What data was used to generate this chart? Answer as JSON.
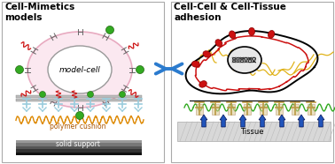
{
  "title_left": "Cell-Mimetics\nmodels",
  "title_right": "Cell-Cell & Cell-Tissue\nadhesion",
  "label_model_cell": "model-cell",
  "label_polymer": "polymer cushion",
  "label_solid": "solid support",
  "label_tissue": "Tissue",
  "bg_color": "#ffffff",
  "arrow_color": "#2b7bce",
  "red_color": "#cc1111",
  "green_color": "#33aa22",
  "blue_arrow_color": "#2255bb",
  "cyan_color": "#99ccdd",
  "orange_color": "#dd8800",
  "yellow_color": "#ddaa00",
  "tissue_color": "#cccccc",
  "grey_color": "#aaaaaa"
}
